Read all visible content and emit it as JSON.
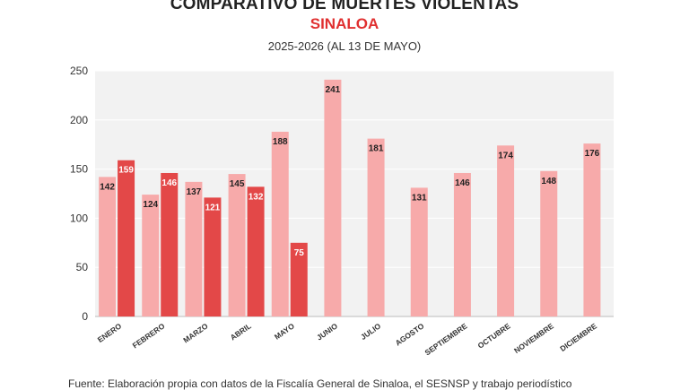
{
  "title": "COMPARATIVO DE MUERTES VIOLENTAS",
  "subtitle": "SINALOA",
  "subtitle2": "2025-2026 (AL 13 DE MAYO)",
  "source": "Fuente: Elaboración propia con datos de la Fiscalía General de Sinaloa, el SESNSP y trabajo periodístico",
  "colors": {
    "series_2025": "#f7aaaa",
    "series_2026": "#e34848",
    "plot_bg": "#f2f2f2"
  },
  "chart_data": {
    "type": "bar",
    "title": "COMPARATIVO DE MUERTES VIOLENTAS",
    "subtitle": "SINALOA",
    "xlabel": "",
    "ylabel": "",
    "ylim": [
      0,
      250
    ],
    "yticks": [
      0,
      50,
      100,
      150,
      200,
      250
    ],
    "grid": true,
    "legend": "none",
    "categories": [
      "ENERO",
      "FEBRERO",
      "MARZO",
      "ABRIL",
      "MAYO",
      "JUNIO",
      "JULIO",
      "AGOSTO",
      "SEPTIEMBRE",
      "OCTUBRE",
      "NOVIEMBRE",
      "DICIEMBRE"
    ],
    "series": [
      {
        "color": "#f7aaaa",
        "values": [
          142,
          124,
          137,
          145,
          188,
          241,
          181,
          131,
          146,
          174,
          148,
          176
        ]
      },
      {
        "color": "#e34848",
        "values": [
          159,
          146,
          121,
          132,
          75,
          null,
          null,
          null,
          null,
          null,
          null,
          null
        ]
      }
    ]
  }
}
